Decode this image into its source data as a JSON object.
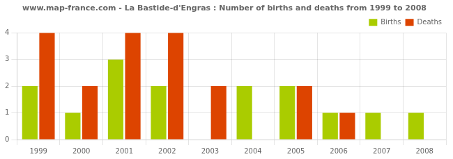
{
  "chart_data": {
    "type": "bar",
    "title": "www.map-france.com - La Bastide-d'Engras : Number of births and deaths from 1999 to 2008",
    "categories": [
      "1999",
      "2000",
      "2001",
      "2002",
      "2003",
      "2004",
      "2005",
      "2006",
      "2007",
      "2008"
    ],
    "series": [
      {
        "name": "Births",
        "color": "#aacc00",
        "values": [
          2,
          1,
          3,
          2,
          0,
          2,
          2,
          1,
          1,
          1
        ]
      },
      {
        "name": "Deaths",
        "color": "#dd4400",
        "values": [
          4,
          2,
          4,
          4,
          2,
          0,
          2,
          1,
          0,
          0
        ]
      }
    ],
    "ylim": [
      0,
      4
    ],
    "yticks": [
      0,
      1,
      2,
      3,
      4
    ],
    "grid": true,
    "legend": "upper right"
  }
}
